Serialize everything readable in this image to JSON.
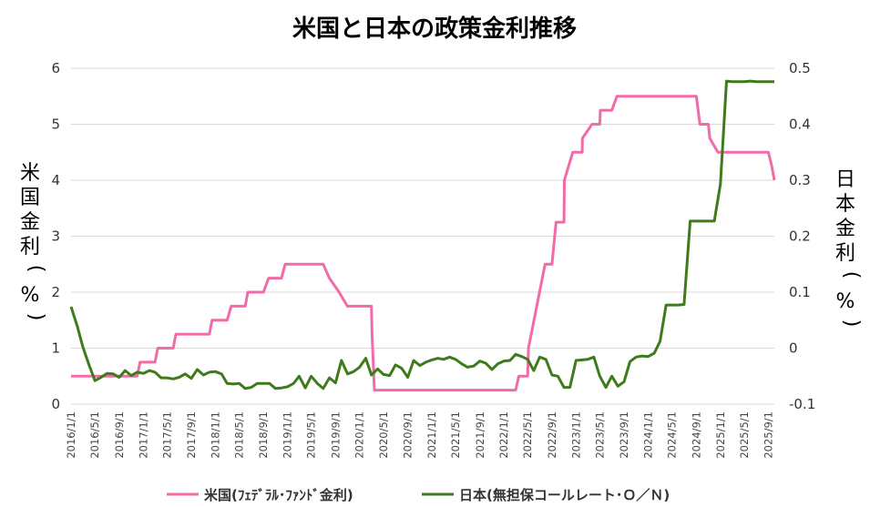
{
  "chart_data": {
    "type": "line",
    "title": "米国と日本の政策金利推移",
    "ylabel_left": "米国金利（%）",
    "ylabel_right": "日本金利（%）",
    "ylim_left": [
      0,
      6
    ],
    "ylim_right": [
      -0.1,
      0.5
    ],
    "yticks_left": [
      "0",
      "1",
      "2",
      "3",
      "4",
      "5",
      "6"
    ],
    "yticks_right": [
      "-0.1",
      "0",
      "0.1",
      "0.2",
      "0.3",
      "0.4",
      "0.5"
    ],
    "x_start": "2016/1/1",
    "x_end": "2025/10/1",
    "xticks": [
      "2016/1/1",
      "2016/5/1",
      "2016/9/1",
      "2017/1/1",
      "2017/5/1",
      "2017/9/1",
      "2018/1/1",
      "2018/5/1",
      "2018/9/1",
      "2019/1/1",
      "2019/5/1",
      "2019/9/1",
      "2020/1/1",
      "2020/5/1",
      "2020/9/1",
      "2021/1/1",
      "2021/5/1",
      "2021/9/1",
      "2022/1/1",
      "2022/5/1",
      "2022/9/1",
      "2023/1/1",
      "2023/5/1",
      "2023/9/1",
      "2024/1/1",
      "2024/5/1",
      "2024/9/1",
      "2025/1/1",
      "2025/5/1",
      "2025/9/1"
    ],
    "grid": true,
    "legend_position": "bottom",
    "series": [
      {
        "name": "米国(ﾌｪﾃﾞﾗﾙ･ﾌｧﾝﾄﾞ金利)",
        "axis": "left",
        "color": "#f06ba8",
        "points": [
          [
            "2016/1/1",
            0.5
          ],
          [
            "2016/12/1",
            0.5
          ],
          [
            "2016/12/15",
            0.75
          ],
          [
            "2017/3/1",
            0.75
          ],
          [
            "2017/3/15",
            1.0
          ],
          [
            "2017/6/1",
            1.0
          ],
          [
            "2017/6/15",
            1.25
          ],
          [
            "2017/12/1",
            1.25
          ],
          [
            "2017/12/15",
            1.5
          ],
          [
            "2018/3/1",
            1.5
          ],
          [
            "2018/3/22",
            1.75
          ],
          [
            "2018/6/1",
            1.75
          ],
          [
            "2018/6/14",
            2.0
          ],
          [
            "2018/9/1",
            2.0
          ],
          [
            "2018/9/27",
            2.25
          ],
          [
            "2018/12/1",
            2.25
          ],
          [
            "2018/12/20",
            2.5
          ],
          [
            "2019/7/1",
            2.5
          ],
          [
            "2019/8/1",
            2.25
          ],
          [
            "2019/9/19",
            2.0
          ],
          [
            "2019/10/31",
            1.75
          ],
          [
            "2020/3/1",
            1.75
          ],
          [
            "2020/3/4",
            1.25
          ],
          [
            "2020/3/16",
            0.25
          ],
          [
            "2022/3/1",
            0.25
          ],
          [
            "2022/3/17",
            0.5
          ],
          [
            "2022/5/1",
            0.5
          ],
          [
            "2022/5/5",
            1.0
          ],
          [
            "2022/6/16",
            1.75
          ],
          [
            "2022/7/28",
            2.5
          ],
          [
            "2022/9/1",
            2.5
          ],
          [
            "2022/9/22",
            3.25
          ],
          [
            "2022/11/1",
            3.25
          ],
          [
            "2022/11/3",
            4.0
          ],
          [
            "2022/12/15",
            4.5
          ],
          [
            "2023/2/1",
            4.5
          ],
          [
            "2023/2/2",
            4.75
          ],
          [
            "2023/3/23",
            5.0
          ],
          [
            "2023/5/1",
            5.0
          ],
          [
            "2023/5/4",
            5.25
          ],
          [
            "2023/7/1",
            5.25
          ],
          [
            "2023/7/27",
            5.5
          ],
          [
            "2024/9/1",
            5.5
          ],
          [
            "2024/9/19",
            5.0
          ],
          [
            "2024/11/1",
            5.0
          ],
          [
            "2024/11/8",
            4.75
          ],
          [
            "2024/12/19",
            4.5
          ],
          [
            "2025/9/1",
            4.5
          ],
          [
            "2025/9/18",
            4.25
          ],
          [
            "2025/10/1",
            4.0
          ]
        ]
      },
      {
        "name": "日本(無担保コールレート･Ｏ／Ｎ)",
        "axis": "right",
        "color": "#3f7a1c",
        "points": [
          [
            "2016/1/1",
            0.074
          ],
          [
            "2016/2/1",
            0.04
          ],
          [
            "2016/3/1",
            0.002
          ],
          [
            "2016/4/1",
            -0.03
          ],
          [
            "2016/5/1",
            -0.058
          ],
          [
            "2016/6/1",
            -0.052
          ],
          [
            "2016/7/1",
            -0.045
          ],
          [
            "2016/8/1",
            -0.046
          ],
          [
            "2016/9/1",
            -0.052
          ],
          [
            "2016/10/1",
            -0.04
          ],
          [
            "2016/11/1",
            -0.049
          ],
          [
            "2016/12/1",
            -0.043
          ],
          [
            "2017/1/1",
            -0.045
          ],
          [
            "2017/2/1",
            -0.04
          ],
          [
            "2017/3/1",
            -0.043
          ],
          [
            "2017/4/1",
            -0.053
          ],
          [
            "2017/5/1",
            -0.053
          ],
          [
            "2017/6/1",
            -0.055
          ],
          [
            "2017/7/1",
            -0.052
          ],
          [
            "2017/8/1",
            -0.046
          ],
          [
            "2017/9/1",
            -0.054
          ],
          [
            "2017/10/1",
            -0.038
          ],
          [
            "2017/11/1",
            -0.048
          ],
          [
            "2017/12/1",
            -0.043
          ],
          [
            "2018/1/1",
            -0.042
          ],
          [
            "2018/2/1",
            -0.046
          ],
          [
            "2018/3/1",
            -0.063
          ],
          [
            "2018/4/1",
            -0.064
          ],
          [
            "2018/5/1",
            -0.063
          ],
          [
            "2018/6/1",
            -0.072
          ],
          [
            "2018/7/1",
            -0.07
          ],
          [
            "2018/8/1",
            -0.063
          ],
          [
            "2018/9/1",
            -0.063
          ],
          [
            "2018/10/1",
            -0.063
          ],
          [
            "2018/11/1",
            -0.072
          ],
          [
            "2018/12/1",
            -0.071
          ],
          [
            "2019/1/1",
            -0.069
          ],
          [
            "2019/2/1",
            -0.063
          ],
          [
            "2019/3/1",
            -0.05
          ],
          [
            "2019/4/1",
            -0.071
          ],
          [
            "2019/5/1",
            -0.05
          ],
          [
            "2019/6/1",
            -0.063
          ],
          [
            "2019/7/1",
            -0.072
          ],
          [
            "2019/8/1",
            -0.053
          ],
          [
            "2019/9/1",
            -0.062
          ],
          [
            "2019/10/1",
            -0.022
          ],
          [
            "2019/11/1",
            -0.046
          ],
          [
            "2019/12/1",
            -0.042
          ],
          [
            "2020/1/1",
            -0.034
          ],
          [
            "2020/2/1",
            -0.018
          ],
          [
            "2020/3/1",
            -0.048
          ],
          [
            "2020/4/1",
            -0.037
          ],
          [
            "2020/5/1",
            -0.047
          ],
          [
            "2020/6/1",
            -0.049
          ],
          [
            "2020/7/1",
            -0.03
          ],
          [
            "2020/8/1",
            -0.036
          ],
          [
            "2020/9/1",
            -0.052
          ],
          [
            "2020/10/1",
            -0.022
          ],
          [
            "2020/11/1",
            -0.031
          ],
          [
            "2020/12/1",
            -0.025
          ],
          [
            "2021/1/1",
            -0.021
          ],
          [
            "2021/2/1",
            -0.018
          ],
          [
            "2021/3/1",
            -0.02
          ],
          [
            "2021/4/1",
            -0.016
          ],
          [
            "2021/5/1",
            -0.02
          ],
          [
            "2021/6/1",
            -0.028
          ],
          [
            "2021/7/1",
            -0.034
          ],
          [
            "2021/8/1",
            -0.032
          ],
          [
            "2021/9/1",
            -0.023
          ],
          [
            "2021/10/1",
            -0.027
          ],
          [
            "2021/11/1",
            -0.038
          ],
          [
            "2021/12/1",
            -0.028
          ],
          [
            "2022/1/1",
            -0.023
          ],
          [
            "2022/2/1",
            -0.022
          ],
          [
            "2022/3/1",
            -0.011
          ],
          [
            "2022/4/1",
            -0.015
          ],
          [
            "2022/5/1",
            -0.02
          ],
          [
            "2022/6/1",
            -0.04
          ],
          [
            "2022/7/1",
            -0.016
          ],
          [
            "2022/8/1",
            -0.02
          ],
          [
            "2022/9/1",
            -0.048
          ],
          [
            "2022/10/1",
            -0.05
          ],
          [
            "2022/11/1",
            -0.07
          ],
          [
            "2022/12/1",
            -0.07
          ],
          [
            "2023/1/1",
            -0.022
          ],
          [
            "2023/2/1",
            -0.021
          ],
          [
            "2023/3/1",
            -0.02
          ],
          [
            "2023/4/1",
            -0.016
          ],
          [
            "2023/5/1",
            -0.05
          ],
          [
            "2023/6/1",
            -0.07
          ],
          [
            "2023/7/1",
            -0.05
          ],
          [
            "2023/8/1",
            -0.068
          ],
          [
            "2023/9/1",
            -0.06
          ],
          [
            "2023/10/1",
            -0.024
          ],
          [
            "2023/11/1",
            -0.016
          ],
          [
            "2023/12/1",
            -0.014
          ],
          [
            "2024/1/1",
            -0.015
          ],
          [
            "2024/2/1",
            -0.009
          ],
          [
            "2024/3/1",
            0.012
          ],
          [
            "2024/4/1",
            0.077
          ],
          [
            "2024/5/1",
            0.077
          ],
          [
            "2024/6/1",
            0.077
          ],
          [
            "2024/7/1",
            0.078
          ],
          [
            "2024/8/1",
            0.227
          ],
          [
            "2024/9/1",
            0.227
          ],
          [
            "2024/10/1",
            0.227
          ],
          [
            "2024/11/1",
            0.227
          ],
          [
            "2024/12/1",
            0.227
          ],
          [
            "2025/1/1",
            0.293
          ],
          [
            "2025/2/1",
            0.477
          ],
          [
            "2025/3/1",
            0.476
          ],
          [
            "2025/4/1",
            0.476
          ],
          [
            "2025/5/1",
            0.476
          ],
          [
            "2025/6/1",
            0.477
          ],
          [
            "2025/7/1",
            0.476
          ],
          [
            "2025/8/1",
            0.476
          ],
          [
            "2025/9/1",
            0.476
          ],
          [
            "2025/10/1",
            0.476
          ]
        ]
      }
    ]
  }
}
